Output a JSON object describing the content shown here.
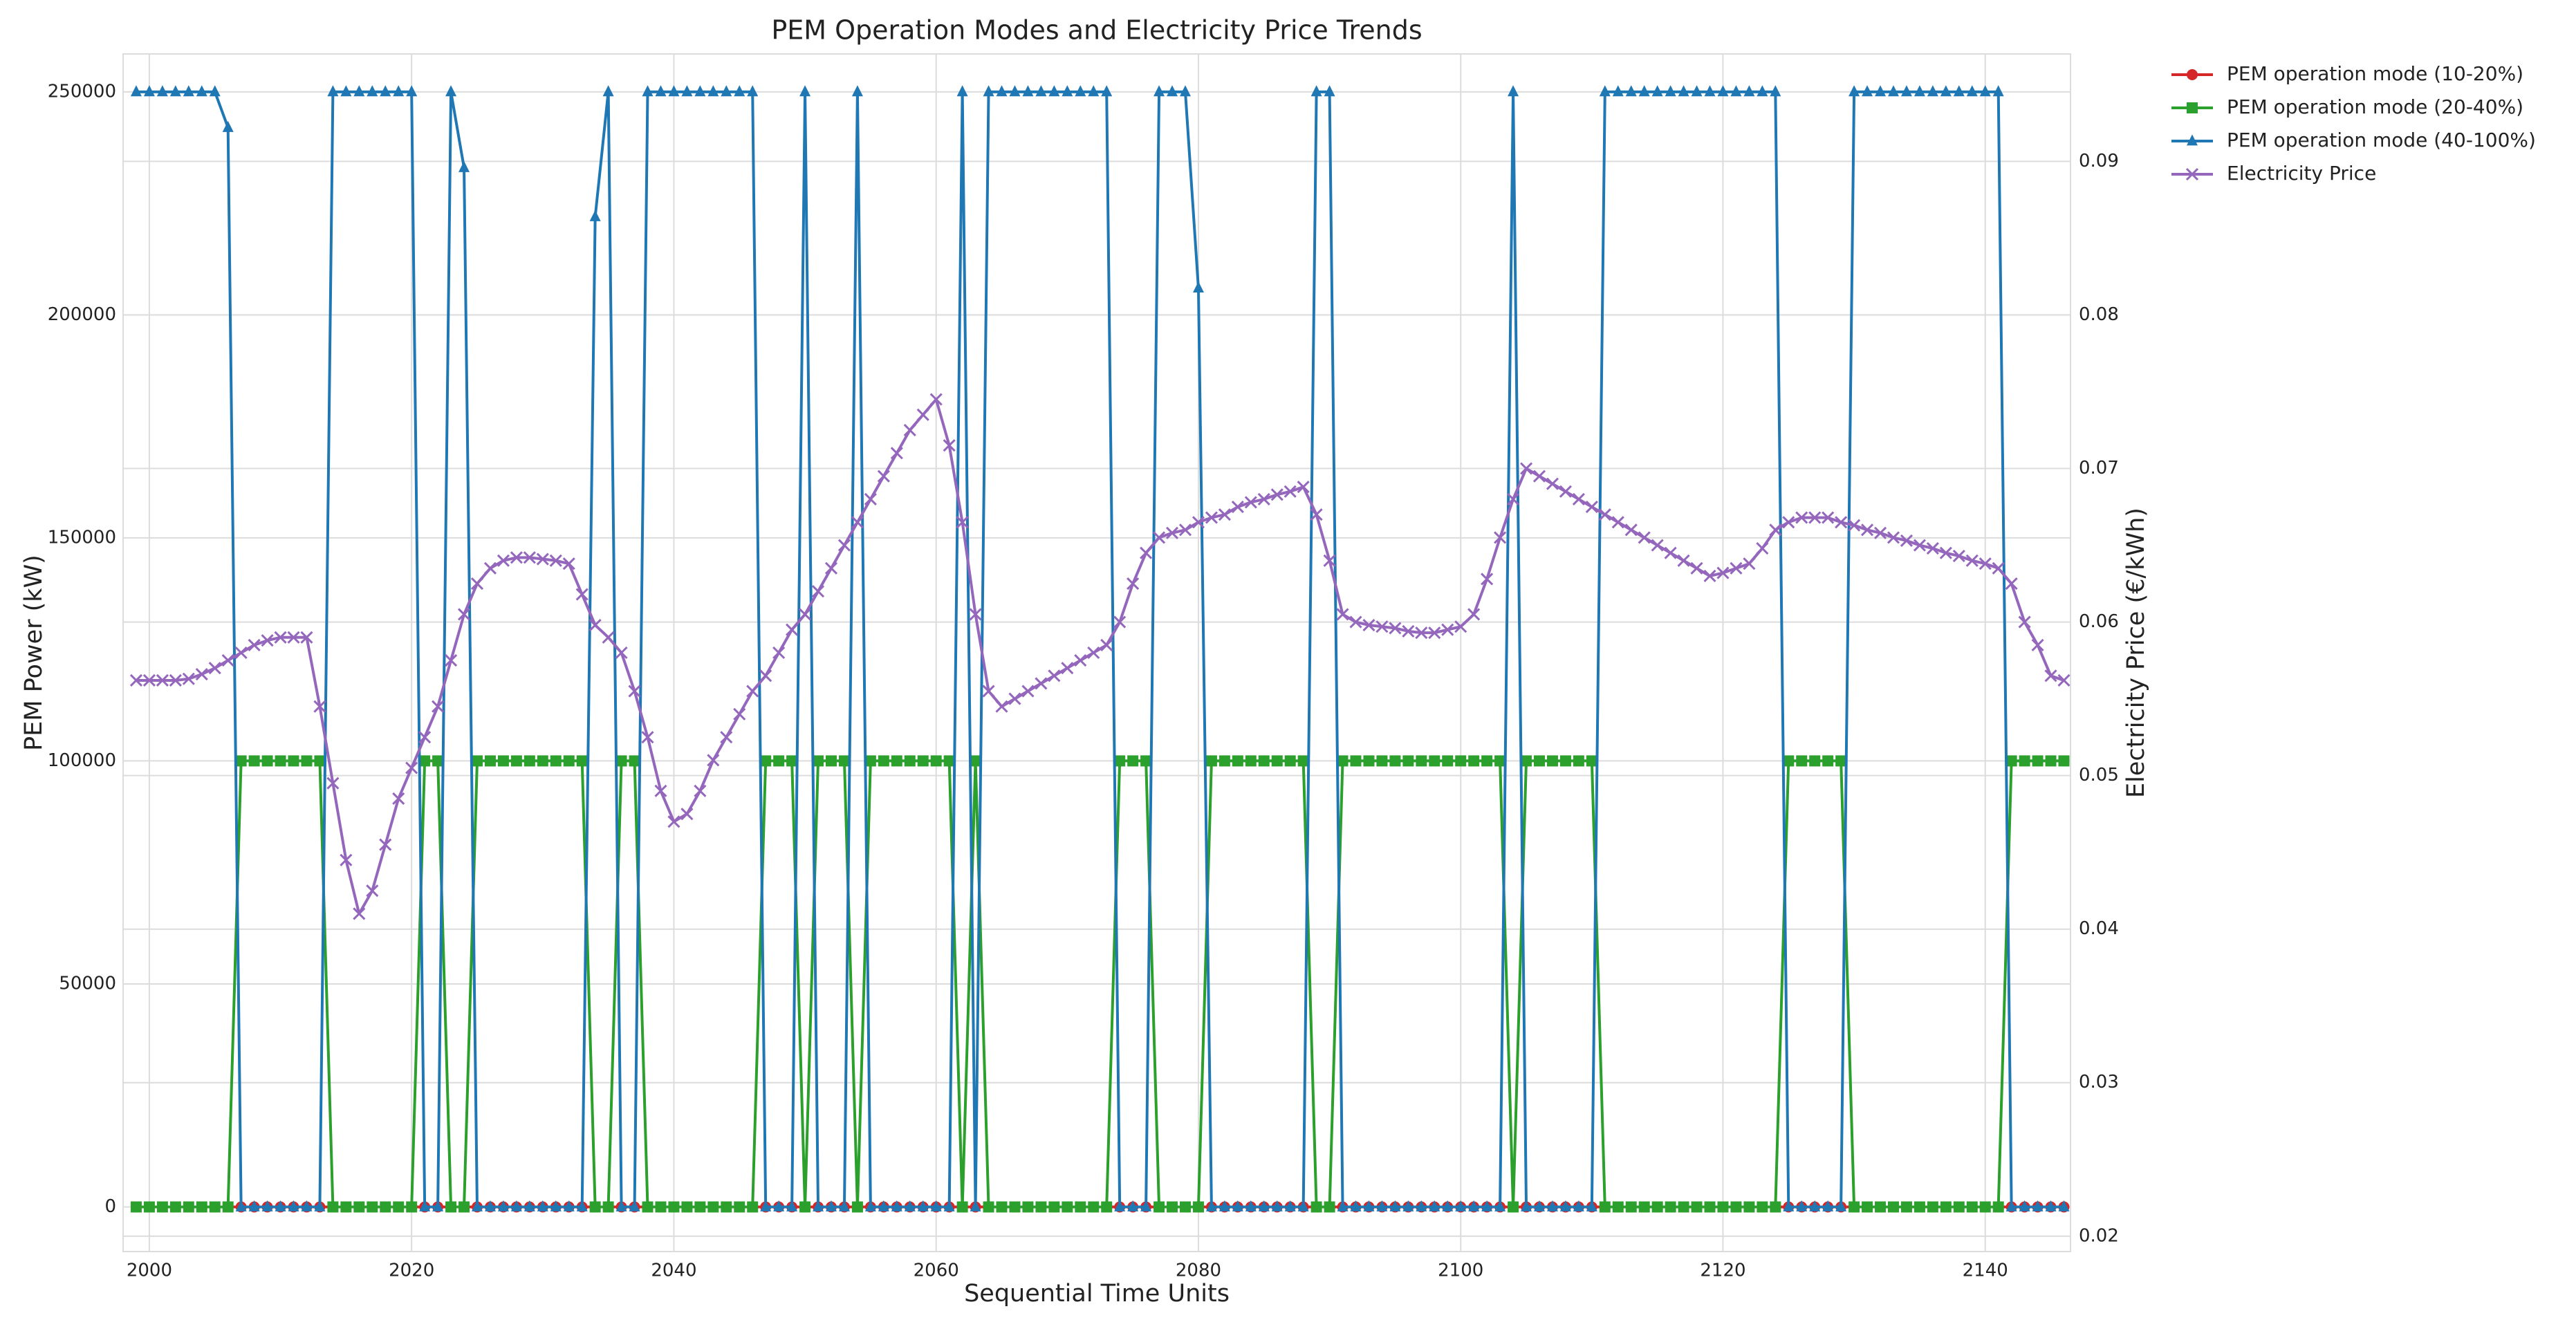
{
  "chart_data": {
    "type": "line",
    "title": "PEM Operation Modes and Electricity Price Trends",
    "xlabel": "Sequential Time Units",
    "ylabel": "PEM Power (kW)",
    "y2label": "Electricity Price (€/kWh)",
    "xlim": [
      1998,
      2146.5
    ],
    "ylim": [
      -10000,
      258500
    ],
    "y2lim": [
      0.019,
      0.097
    ],
    "xticks": [
      2000,
      2020,
      2040,
      2060,
      2080,
      2100,
      2120,
      2140
    ],
    "yticks": [
      0,
      50000,
      100000,
      150000,
      200000,
      250000
    ],
    "y2ticks": [
      0.02,
      0.03,
      0.04,
      0.05,
      0.06,
      0.07,
      0.08,
      0.09
    ],
    "y2tick_color": "#a66fd4",
    "grid": true,
    "legend": "outside-upper-right",
    "x": [
      1999,
      2000,
      2001,
      2002,
      2003,
      2004,
      2005,
      2006,
      2007,
      2008,
      2009,
      2010,
      2011,
      2012,
      2013,
      2014,
      2015,
      2016,
      2017,
      2018,
      2019,
      2020,
      2021,
      2022,
      2023,
      2024,
      2025,
      2026,
      2027,
      2028,
      2029,
      2030,
      2031,
      2032,
      2033,
      2034,
      2035,
      2036,
      2037,
      2038,
      2039,
      2040,
      2041,
      2042,
      2043,
      2044,
      2045,
      2046,
      2047,
      2048,
      2049,
      2050,
      2051,
      2052,
      2053,
      2054,
      2055,
      2056,
      2057,
      2058,
      2059,
      2060,
      2061,
      2062,
      2063,
      2064,
      2065,
      2066,
      2067,
      2068,
      2069,
      2070,
      2071,
      2072,
      2073,
      2074,
      2075,
      2076,
      2077,
      2078,
      2079,
      2080,
      2081,
      2082,
      2083,
      2084,
      2085,
      2086,
      2087,
      2088,
      2089,
      2090,
      2091,
      2092,
      2093,
      2094,
      2095,
      2096,
      2097,
      2098,
      2099,
      2100,
      2101,
      2102,
      2103,
      2104,
      2105,
      2106,
      2107,
      2108,
      2109,
      2110,
      2111,
      2112,
      2113,
      2114,
      2115,
      2116,
      2117,
      2118,
      2119,
      2120,
      2121,
      2122,
      2123,
      2124,
      2125,
      2126,
      2127,
      2128,
      2129,
      2130,
      2131,
      2132,
      2133,
      2134,
      2135,
      2136,
      2137,
      2138,
      2139,
      2140,
      2141,
      2142,
      2143,
      2144,
      2145,
      2146
    ],
    "series": [
      {
        "name": "PEM operation mode (10-20%)",
        "color": "#d62728",
        "marker": "circle",
        "axis": "y",
        "values": [
          0,
          0,
          0,
          0,
          0,
          0,
          0,
          0,
          0,
          0,
          0,
          0,
          0,
          0,
          0,
          0,
          0,
          0,
          0,
          0,
          0,
          0,
          0,
          0,
          0,
          0,
          0,
          0,
          0,
          0,
          0,
          0,
          0,
          0,
          0,
          0,
          0,
          0,
          0,
          0,
          0,
          0,
          0,
          0,
          0,
          0,
          0,
          0,
          0,
          0,
          0,
          0,
          0,
          0,
          0,
          0,
          0,
          0,
          0,
          0,
          0,
          0,
          0,
          0,
          0,
          0,
          0,
          0,
          0,
          0,
          0,
          0,
          0,
          0,
          0,
          0,
          0,
          0,
          0,
          0,
          0,
          0,
          0,
          0,
          0,
          0,
          0,
          0,
          0,
          0,
          0,
          0,
          0,
          0,
          0,
          0,
          0,
          0,
          0,
          0,
          0,
          0,
          0,
          0,
          0,
          0,
          0,
          0,
          0,
          0,
          0,
          0,
          0,
          0,
          0,
          0,
          0,
          0,
          0,
          0,
          0,
          0,
          0,
          0,
          0,
          0,
          0,
          0,
          0,
          0,
          0,
          0,
          0,
          0,
          0,
          0,
          0,
          0,
          0,
          0,
          0,
          0,
          0,
          0,
          0,
          0,
          0,
          0
        ]
      },
      {
        "name": "PEM operation mode (20-40%)",
        "color": "#2ca02c",
        "marker": "square",
        "axis": "y",
        "values": [
          0,
          0,
          0,
          0,
          0,
          0,
          0,
          0,
          100000,
          100000,
          100000,
          100000,
          100000,
          100000,
          100000,
          0,
          0,
          0,
          0,
          0,
          0,
          0,
          100000,
          100000,
          0,
          0,
          100000,
          100000,
          100000,
          100000,
          100000,
          100000,
          100000,
          100000,
          100000,
          0,
          0,
          100000,
          100000,
          0,
          0,
          0,
          0,
          0,
          0,
          0,
          0,
          0,
          100000,
          100000,
          100000,
          0,
          100000,
          100000,
          100000,
          0,
          100000,
          100000,
          100000,
          100000,
          100000,
          100000,
          100000,
          0,
          100000,
          0,
          0,
          0,
          0,
          0,
          0,
          0,
          0,
          0,
          0,
          100000,
          100000,
          100000,
          0,
          0,
          0,
          0,
          100000,
          100000,
          100000,
          100000,
          100000,
          100000,
          100000,
          100000,
          0,
          0,
          100000,
          100000,
          100000,
          100000,
          100000,
          100000,
          100000,
          100000,
          100000,
          100000,
          100000,
          100000,
          100000,
          0,
          100000,
          100000,
          100000,
          100000,
          100000,
          100000,
          0,
          0,
          0,
          0,
          0,
          0,
          0,
          0,
          0,
          0,
          0,
          0,
          0,
          0,
          100000,
          100000,
          100000,
          100000,
          100000,
          0,
          0,
          0,
          0,
          0,
          0,
          0,
          0,
          0,
          0,
          0,
          0,
          100000,
          100000,
          100000,
          100000,
          100000
        ]
      },
      {
        "name": "PEM operation mode (40-100%)",
        "color": "#1f77b4",
        "marker": "triangle",
        "axis": "y",
        "values": [
          250000,
          250000,
          250000,
          250000,
          250000,
          250000,
          250000,
          242000,
          0,
          0,
          0,
          0,
          0,
          0,
          0,
          250000,
          250000,
          250000,
          250000,
          250000,
          250000,
          250000,
          0,
          0,
          250000,
          233000,
          0,
          0,
          0,
          0,
          0,
          0,
          0,
          0,
          0,
          222000,
          250000,
          0,
          0,
          250000,
          250000,
          250000,
          250000,
          250000,
          250000,
          250000,
          250000,
          250000,
          0,
          0,
          0,
          250000,
          0,
          0,
          0,
          250000,
          0,
          0,
          0,
          0,
          0,
          0,
          0,
          250000,
          0,
          250000,
          250000,
          250000,
          250000,
          250000,
          250000,
          250000,
          250000,
          250000,
          250000,
          0,
          0,
          0,
          250000,
          250000,
          250000,
          206000,
          0,
          0,
          0,
          0,
          0,
          0,
          0,
          0,
          250000,
          250000,
          0,
          0,
          0,
          0,
          0,
          0,
          0,
          0,
          0,
          0,
          0,
          0,
          0,
          250000,
          0,
          0,
          0,
          0,
          0,
          0,
          250000,
          250000,
          250000,
          250000,
          250000,
          250000,
          250000,
          250000,
          250000,
          250000,
          250000,
          250000,
          250000,
          250000,
          0,
          0,
          0,
          0,
          0,
          250000,
          250000,
          250000,
          250000,
          250000,
          250000,
          250000,
          250000,
          250000,
          250000,
          250000,
          250000,
          0,
          0,
          0,
          0,
          0
        ]
      },
      {
        "name": "Electricity Price",
        "color": "#9467bd",
        "marker": "x",
        "axis": "y2",
        "values": [
          0.0562,
          0.0562,
          0.0562,
          0.0562,
          0.0563,
          0.0566,
          0.057,
          0.0575,
          0.058,
          0.0585,
          0.0588,
          0.059,
          0.059,
          0.059,
          0.0545,
          0.0495,
          0.0445,
          0.041,
          0.0425,
          0.0455,
          0.0485,
          0.0505,
          0.0525,
          0.0545,
          0.0575,
          0.0605,
          0.0625,
          0.0635,
          0.064,
          0.0642,
          0.0642,
          0.0641,
          0.064,
          0.0638,
          0.0618,
          0.0598,
          0.059,
          0.058,
          0.0555,
          0.0525,
          0.049,
          0.047,
          0.0475,
          0.049,
          0.051,
          0.0525,
          0.054,
          0.0555,
          0.0565,
          0.058,
          0.0595,
          0.0605,
          0.062,
          0.0635,
          0.065,
          0.0665,
          0.068,
          0.0695,
          0.071,
          0.0725,
          0.0735,
          0.0745,
          0.0715,
          0.0665,
          0.0605,
          0.0555,
          0.0545,
          0.055,
          0.0555,
          0.056,
          0.0565,
          0.057,
          0.0575,
          0.058,
          0.0585,
          0.06,
          0.0625,
          0.0645,
          0.0655,
          0.0658,
          0.066,
          0.0665,
          0.0668,
          0.067,
          0.0675,
          0.0678,
          0.068,
          0.0683,
          0.0685,
          0.0688,
          0.067,
          0.064,
          0.0605,
          0.06,
          0.0598,
          0.0597,
          0.0596,
          0.0594,
          0.0593,
          0.0593,
          0.0595,
          0.0597,
          0.0605,
          0.0628,
          0.0655,
          0.068,
          0.07,
          0.0695,
          0.069,
          0.0685,
          0.068,
          0.0675,
          0.067,
          0.0665,
          0.066,
          0.0655,
          0.065,
          0.0645,
          0.064,
          0.0635,
          0.063,
          0.0632,
          0.0635,
          0.0638,
          0.0648,
          0.066,
          0.0665,
          0.0668,
          0.0668,
          0.0668,
          0.0665,
          0.0663,
          0.066,
          0.0658,
          0.0655,
          0.0653,
          0.065,
          0.0648,
          0.0645,
          0.0643,
          0.064,
          0.0638,
          0.0635,
          0.0625,
          0.06,
          0.0585,
          0.0565,
          0.0562
        ]
      }
    ]
  }
}
